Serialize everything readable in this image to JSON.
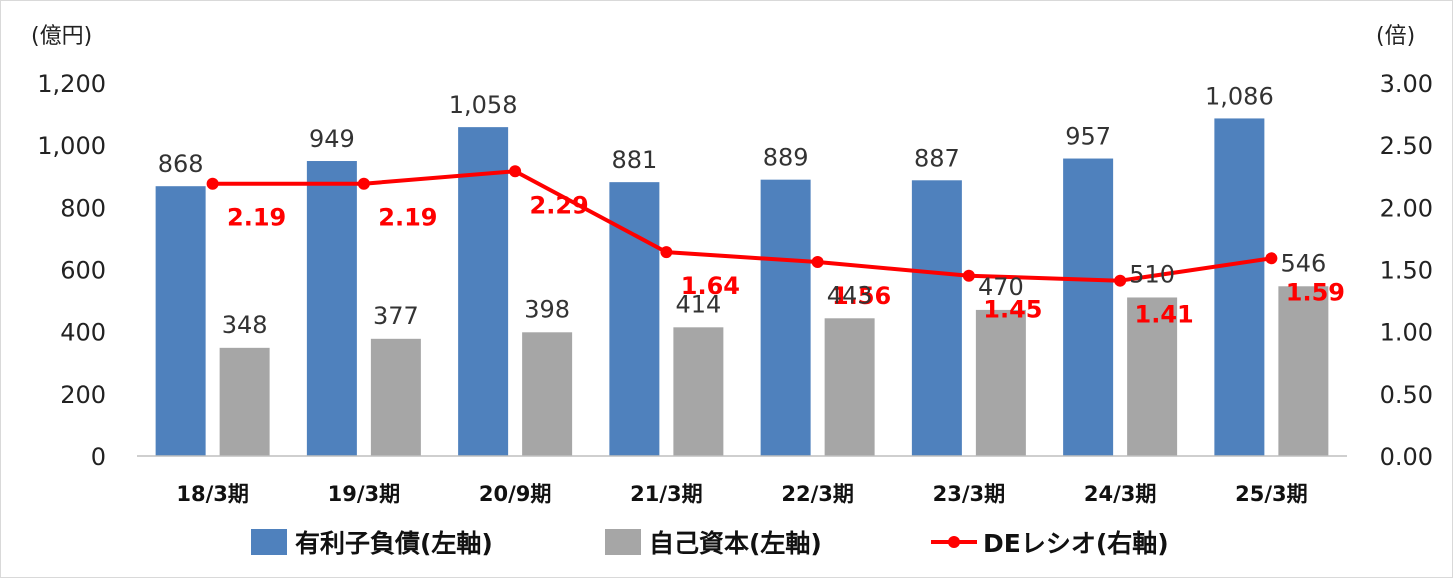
{
  "chart_data": {
    "type": "bar",
    "categories": [
      "18/3期",
      "19/3期",
      "20/9期",
      "21/3期",
      "22/3期",
      "23/3期",
      "24/3期",
      "25/3期"
    ],
    "series": [
      {
        "name": "有利子負債(左軸)",
        "type": "bar",
        "axis": "left",
        "color": "#4f81bd",
        "values": [
          868,
          949,
          1058,
          881,
          889,
          887,
          957,
          1086
        ],
        "labels": [
          "868",
          "949",
          "1,058",
          "881",
          "889",
          "887",
          "957",
          "1,086"
        ]
      },
      {
        "name": "自己資本(左軸)",
        "type": "bar",
        "axis": "left",
        "color": "#a6a6a6",
        "values": [
          348,
          377,
          398,
          414,
          443,
          470,
          510,
          546
        ],
        "labels": [
          "348",
          "377",
          "398",
          "414",
          "443",
          "470",
          "510",
          "546"
        ]
      },
      {
        "name": "DEレシオ(右軸)",
        "type": "line",
        "axis": "right",
        "color": "#ff0000",
        "values": [
          2.19,
          2.19,
          2.29,
          1.64,
          1.56,
          1.45,
          1.41,
          1.59
        ],
        "labels": [
          "2.19",
          "2.19",
          "2.29",
          "1.64",
          "1.56",
          "1.45",
          "1.41",
          "1.59"
        ]
      }
    ],
    "y_left": {
      "unit": "(億円)",
      "ylim": [
        0,
        1200
      ],
      "ticks": [
        0,
        200,
        400,
        600,
        800,
        1000,
        1200
      ],
      "tick_labels": [
        "0",
        "200",
        "400",
        "600",
        "800",
        "1,000",
        "1,200"
      ]
    },
    "y_right": {
      "unit": "(倍)",
      "ylim": [
        0,
        3.0
      ],
      "ticks": [
        0,
        0.5,
        1.0,
        1.5,
        2.0,
        2.5,
        3.0
      ],
      "tick_labels": [
        "0.00",
        "0.50",
        "1.00",
        "1.50",
        "2.00",
        "2.50",
        "3.00"
      ]
    },
    "title": "",
    "grid": false,
    "legend": "bottom"
  }
}
